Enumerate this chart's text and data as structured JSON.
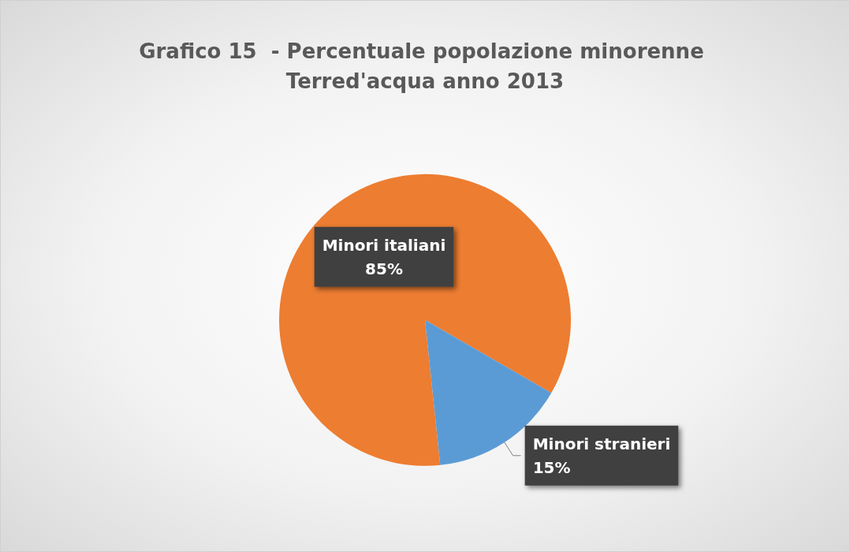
{
  "chart_data": {
    "type": "pie",
    "title": "Grafico 15  - Percentuale popolazione minorenne Terred'acqua anno 2013",
    "categories": [
      "Minori italiani",
      "Minori stranieri"
    ],
    "values": [
      85,
      15
    ],
    "colors": [
      "#ed7d31",
      "#5b9bd5"
    ],
    "value_labels": [
      "85%",
      "15%"
    ]
  }
}
